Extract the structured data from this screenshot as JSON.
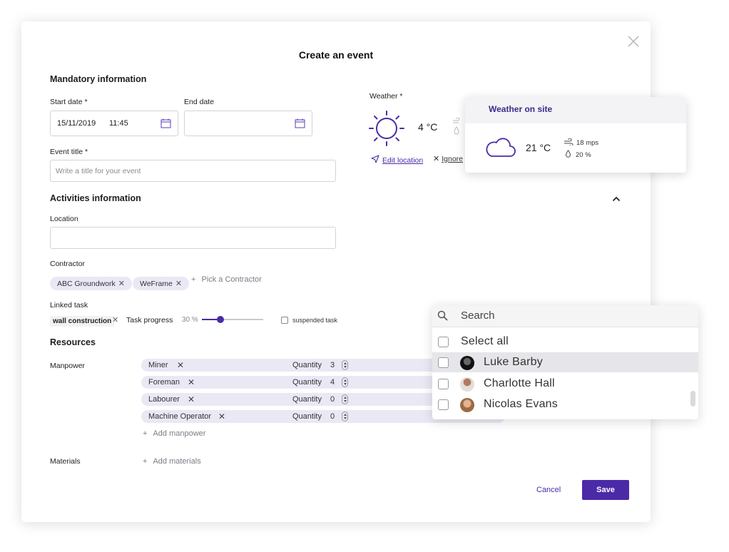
{
  "modal": {
    "title": "Create an event",
    "mandatory": {
      "heading": "Mandatory information",
      "start_date_label": "Start date *",
      "start_date_value": "15/11/2019",
      "start_time_value": "11:45",
      "end_date_label": "End date",
      "event_title_label": "Event title *",
      "event_title_placeholder": "Write a title for your event"
    },
    "weather": {
      "label": "Weather *",
      "temp": "4 °C",
      "edit_location": "Edit location",
      "ignore": "Ignore"
    },
    "activities": {
      "heading": "Activities information",
      "location_label": "Location",
      "contractor_label": "Contractor",
      "contractors": [
        "ABC Groundwork",
        "WeFrame"
      ],
      "pick_contractor": "Pick a Contractor",
      "linked_task_label": "Linked task",
      "linked_task": "wall construction",
      "task_progress_label": "Task progress",
      "task_progress_value": "30 %",
      "task_progress_fraction": 0.3,
      "suspended_label": "suspended task"
    },
    "resources": {
      "heading": "Resources",
      "manpower_label": "Manpower",
      "quantity_label": "Quantity",
      "rows": [
        {
          "name": "Miner",
          "qty": "3"
        },
        {
          "name": "Foreman",
          "qty": "4"
        },
        {
          "name": "Labourer",
          "qty": "0"
        },
        {
          "name": "Machine Operator",
          "qty": "0"
        }
      ],
      "add_manpower": "Add manpower",
      "materials_label": "Materials",
      "add_materials": "Add materials"
    },
    "actions": {
      "cancel": "Cancel",
      "save": "Save"
    }
  },
  "weather_popup": {
    "title": "Weather on site",
    "temp": "21 °C",
    "wind": "18 mps",
    "humidity": "20 %"
  },
  "dropdown": {
    "search_placeholder": "Search",
    "select_all": "Select all",
    "people": [
      "Luke Barby",
      "Charlotte Hall",
      "Nicolas Evans"
    ]
  },
  "colors": {
    "accent": "#4b2aa8",
    "chip": "#ebe8f5"
  }
}
